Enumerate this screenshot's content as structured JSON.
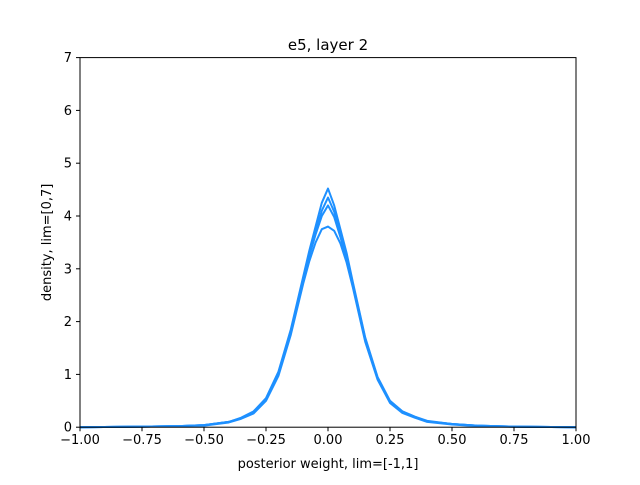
{
  "chart_data": {
    "type": "line",
    "title": "e5, layer 2",
    "xlabel": "posterior weight, lim=[-1,1]",
    "ylabel": "density, lim=[0,7]",
    "xlim": [
      -1,
      1
    ],
    "ylim": [
      0,
      7
    ],
    "xticks": [
      -1.0,
      -0.75,
      -0.5,
      -0.25,
      0.0,
      0.25,
      0.5,
      0.75,
      1.0
    ],
    "xtick_labels": [
      "−1.00",
      "−0.75",
      "−0.50",
      "−0.25",
      "0.00",
      "0.25",
      "0.50",
      "0.75",
      "1.00"
    ],
    "yticks": [
      0,
      1,
      2,
      3,
      4,
      5,
      6,
      7
    ],
    "ytick_labels": [
      "0",
      "1",
      "2",
      "3",
      "4",
      "5",
      "6",
      "7"
    ],
    "grid": false,
    "line_color": "#1e90ff",
    "x": [
      -1.0,
      -0.75,
      -0.6,
      -0.5,
      -0.4,
      -0.35,
      -0.3,
      -0.25,
      -0.2,
      -0.15,
      -0.1,
      -0.075,
      -0.05,
      -0.025,
      0.0,
      0.025,
      0.05,
      0.075,
      0.1,
      0.15,
      0.2,
      0.25,
      0.3,
      0.35,
      0.4,
      0.5,
      0.6,
      0.75,
      1.0
    ],
    "series": [
      {
        "values": [
          0.0,
          0.01,
          0.02,
          0.04,
          0.1,
          0.18,
          0.3,
          0.55,
          1.05,
          1.85,
          2.85,
          3.35,
          3.8,
          4.25,
          4.52,
          4.2,
          3.75,
          3.3,
          2.75,
          1.7,
          0.95,
          0.5,
          0.3,
          0.2,
          0.12,
          0.06,
          0.03,
          0.01,
          0.0
        ]
      },
      {
        "values": [
          0.0,
          0.01,
          0.02,
          0.04,
          0.1,
          0.17,
          0.28,
          0.52,
          1.0,
          1.8,
          2.78,
          3.25,
          3.65,
          4.0,
          4.2,
          3.98,
          3.6,
          3.2,
          2.7,
          1.66,
          0.92,
          0.48,
          0.29,
          0.19,
          0.11,
          0.06,
          0.03,
          0.01,
          0.0
        ]
      },
      {
        "values": [
          0.0,
          0.01,
          0.02,
          0.03,
          0.09,
          0.16,
          0.26,
          0.5,
          0.97,
          1.75,
          2.72,
          3.15,
          3.5,
          3.75,
          3.8,
          3.72,
          3.48,
          3.12,
          2.65,
          1.62,
          0.9,
          0.46,
          0.27,
          0.18,
          0.1,
          0.05,
          0.02,
          0.01,
          0.0
        ]
      },
      {
        "values": [
          0.0,
          0.01,
          0.02,
          0.04,
          0.1,
          0.17,
          0.29,
          0.53,
          1.02,
          1.82,
          2.8,
          3.28,
          3.7,
          4.1,
          4.35,
          4.08,
          3.65,
          3.25,
          2.72,
          1.68,
          0.93,
          0.49,
          0.3,
          0.2,
          0.11,
          0.06,
          0.03,
          0.01,
          0.0
        ]
      }
    ]
  }
}
